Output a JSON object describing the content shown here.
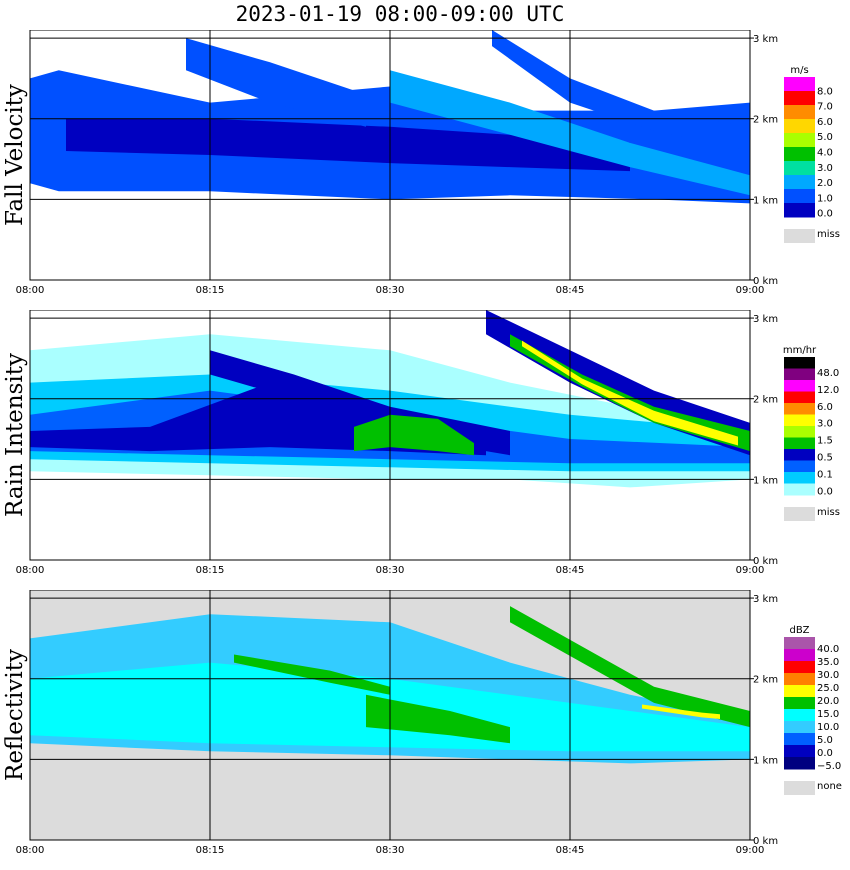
{
  "title": "2023-01-19   08:00-09:00 UTC",
  "chart_data": [
    {
      "type": "heatmap",
      "title": "Fall Velocity",
      "x_ticks": [
        "08:00",
        "08:15",
        "08:30",
        "08:45",
        "09:00"
      ],
      "xlim": [
        "08:00",
        "09:00"
      ],
      "y_ticks": [
        "0 km",
        "1 km",
        "2 km",
        "3 km"
      ],
      "ylim": [
        0,
        3.1
      ],
      "background": "#ffffff",
      "colorbar": {
        "unit": "m/s",
        "labels": [
          "8.0",
          "7.0",
          "6.0",
          "5.0",
          "4.0",
          "3.0",
          "2.0",
          "1.0",
          "0.0"
        ],
        "colors": [
          "#ff00ff",
          "#ff0000",
          "#ff8c00",
          "#ffd700",
          "#aaff00",
          "#00c000",
          "#00e0a0",
          "#00a8ff",
          "#0050ff",
          "#0000c0"
        ],
        "missing_label": "miss",
        "missing_color": "#dcdcdc"
      },
      "bands": [
        {
          "x": [
            0,
            2.4,
            15,
            30,
            40,
            52,
            60
          ],
          "top": [
            2.5,
            2.6,
            2.2,
            2.4,
            2.1,
            2.1,
            2.2
          ],
          "bottom": [
            1.2,
            1.1,
            1.1,
            1.0,
            1.05,
            1.0,
            0.95
          ],
          "color": "#0050ff"
        },
        {
          "x": [
            3,
            15,
            30,
            40,
            50
          ],
          "top": [
            2.0,
            2.0,
            1.9,
            1.8,
            1.7
          ],
          "bottom": [
            1.6,
            1.55,
            1.45,
            1.4,
            1.35
          ],
          "color": "#0000c0"
        },
        {
          "x": [
            13,
            20,
            28
          ],
          "top": [
            3.0,
            2.7,
            2.3
          ],
          "bottom": [
            2.6,
            2.2,
            1.9
          ],
          "color": "#0050ff"
        },
        {
          "x": [
            30,
            40,
            50,
            60
          ],
          "top": [
            2.6,
            2.2,
            1.7,
            1.3
          ],
          "bottom": [
            2.2,
            1.8,
            1.4,
            1.05
          ],
          "color": "#00a8ff"
        },
        {
          "x": [
            38.5,
            45,
            52,
            60
          ],
          "top": [
            3.1,
            2.5,
            2.1,
            1.9
          ],
          "bottom": [
            2.9,
            2.2,
            1.85,
            1.6
          ],
          "color": "#0050ff"
        }
      ]
    },
    {
      "type": "heatmap",
      "title": "Rain Intensity",
      "x_ticks": [
        "08:00",
        "08:15",
        "08:30",
        "08:45",
        "09:00"
      ],
      "xlim": [
        "08:00",
        "09:00"
      ],
      "y_ticks": [
        "0 km",
        "1 km",
        "2 km",
        "3 km"
      ],
      "ylim": [
        0,
        3.1
      ],
      "background": "#ffffff",
      "colorbar": {
        "unit": "mm/hr",
        "labels": [
          "48.0",
          "12.0",
          "6.0",
          "3.0",
          "1.5",
          "0.5",
          "0.1",
          "0.0"
        ],
        "colors": [
          "#000000",
          "#800080",
          "#ff00ff",
          "#ff0000",
          "#ff8c00",
          "#ffff00",
          "#aaff00",
          "#00c000",
          "#0000c0",
          "#0060ff",
          "#00ccff",
          "#aaffff"
        ],
        "missing_label": "miss",
        "missing_color": "#dcdcdc"
      },
      "bands": [
        {
          "x": [
            0,
            15,
            30,
            40,
            50,
            60
          ],
          "top": [
            2.6,
            2.8,
            2.6,
            2.2,
            1.9,
            1.7
          ],
          "bottom": [
            1.1,
            1.05,
            1.0,
            1.0,
            0.9,
            1.0
          ],
          "color": "#aaffff"
        },
        {
          "x": [
            0,
            15,
            30,
            45,
            60
          ],
          "top": [
            2.2,
            2.3,
            2.1,
            1.8,
            1.6
          ],
          "bottom": [
            1.25,
            1.2,
            1.15,
            1.1,
            1.1
          ],
          "color": "#00ccff"
        },
        {
          "x": [
            0,
            15,
            30,
            45,
            60
          ],
          "top": [
            1.8,
            2.1,
            1.8,
            1.5,
            1.4
          ],
          "bottom": [
            1.35,
            1.3,
            1.25,
            1.2,
            1.2
          ],
          "color": "#0060ff"
        },
        {
          "x": [
            0,
            10,
            20,
            30,
            38
          ],
          "top": [
            1.6,
            1.65,
            2.2,
            1.8,
            1.5
          ],
          "bottom": [
            1.4,
            1.35,
            1.4,
            1.35,
            1.3
          ],
          "color": "#0000c0"
        },
        {
          "x": [
            15,
            22,
            30,
            40
          ],
          "top": [
            2.6,
            2.3,
            1.9,
            1.6
          ],
          "bottom": [
            2.3,
            2.0,
            1.55,
            1.3
          ],
          "color": "#0000c0"
        },
        {
          "x": [
            38,
            45,
            52,
            60
          ],
          "top": [
            3.1,
            2.6,
            2.1,
            1.7
          ],
          "bottom": [
            2.8,
            2.2,
            1.7,
            1.3
          ],
          "color": "#0000c0"
        },
        {
          "x": [
            27,
            30,
            34,
            37
          ],
          "top": [
            1.65,
            1.8,
            1.75,
            1.45
          ],
          "bottom": [
            1.35,
            1.4,
            1.35,
            1.3
          ],
          "color": "#00c000"
        },
        {
          "x": [
            40,
            46,
            52,
            60
          ],
          "top": [
            2.8,
            2.3,
            1.9,
            1.6
          ],
          "bottom": [
            2.65,
            2.15,
            1.7,
            1.35
          ],
          "color": "#00c000"
        },
        {
          "x": [
            41,
            46,
            52,
            59
          ],
          "top": [
            2.72,
            2.25,
            1.85,
            1.53
          ],
          "bottom": [
            2.65,
            2.18,
            1.72,
            1.42
          ],
          "color": "#ffff00"
        }
      ]
    },
    {
      "type": "heatmap",
      "title": "Reflectivity",
      "x_ticks": [
        "08:00",
        "08:15",
        "08:30",
        "08:45",
        "09:00"
      ],
      "xlim": [
        "08:00",
        "09:00"
      ],
      "y_ticks": [
        "0 km",
        "1 km",
        "2 km",
        "3 km"
      ],
      "ylim": [
        0,
        3.1
      ],
      "background": "#dcdcdc",
      "colorbar": {
        "unit": "dBZ",
        "labels": [
          "40.0",
          "35.0",
          "30.0",
          "25.0",
          "20.0",
          "15.0",
          "10.0",
          "5.0",
          "0.0",
          "−5.0"
        ],
        "colors": [
          "#aa55aa",
          "#cc00cc",
          "#ff0000",
          "#ff8000",
          "#ffff00",
          "#00c000",
          "#00ffff",
          "#33ccff",
          "#0060ff",
          "#0000c0",
          "#000080"
        ],
        "missing_label": "none",
        "missing_color": "#dcdcdc"
      },
      "bands": [
        {
          "x": [
            0,
            15,
            30,
            40,
            50,
            60
          ],
          "top": [
            2.5,
            2.8,
            2.7,
            2.2,
            1.8,
            1.5
          ],
          "bottom": [
            1.2,
            1.1,
            1.05,
            1.0,
            0.95,
            1.0
          ],
          "color": "#33ccff"
        },
        {
          "x": [
            0,
            15,
            30,
            45,
            60
          ],
          "top": [
            2.0,
            2.2,
            2.0,
            1.7,
            1.4
          ],
          "bottom": [
            1.3,
            1.2,
            1.15,
            1.1,
            1.1
          ],
          "color": "#00ffff"
        },
        {
          "x": [
            28,
            35,
            40
          ],
          "top": [
            1.8,
            1.6,
            1.4
          ],
          "bottom": [
            1.4,
            1.3,
            1.2
          ],
          "color": "#00c000"
        },
        {
          "x": [
            17,
            25,
            30
          ],
          "top": [
            2.3,
            2.1,
            1.9
          ],
          "bottom": [
            2.2,
            1.95,
            1.8
          ],
          "color": "#00c000"
        },
        {
          "x": [
            40,
            46,
            52,
            60
          ],
          "top": [
            2.9,
            2.4,
            1.9,
            1.6
          ],
          "bottom": [
            2.7,
            2.2,
            1.7,
            1.4
          ],
          "color": "#00c000"
        },
        {
          "x": [
            51,
            56,
            57.5
          ],
          "top": [
            1.68,
            1.58,
            1.56
          ],
          "bottom": [
            1.63,
            1.52,
            1.5
          ],
          "color": "#ffff00"
        }
      ]
    }
  ]
}
